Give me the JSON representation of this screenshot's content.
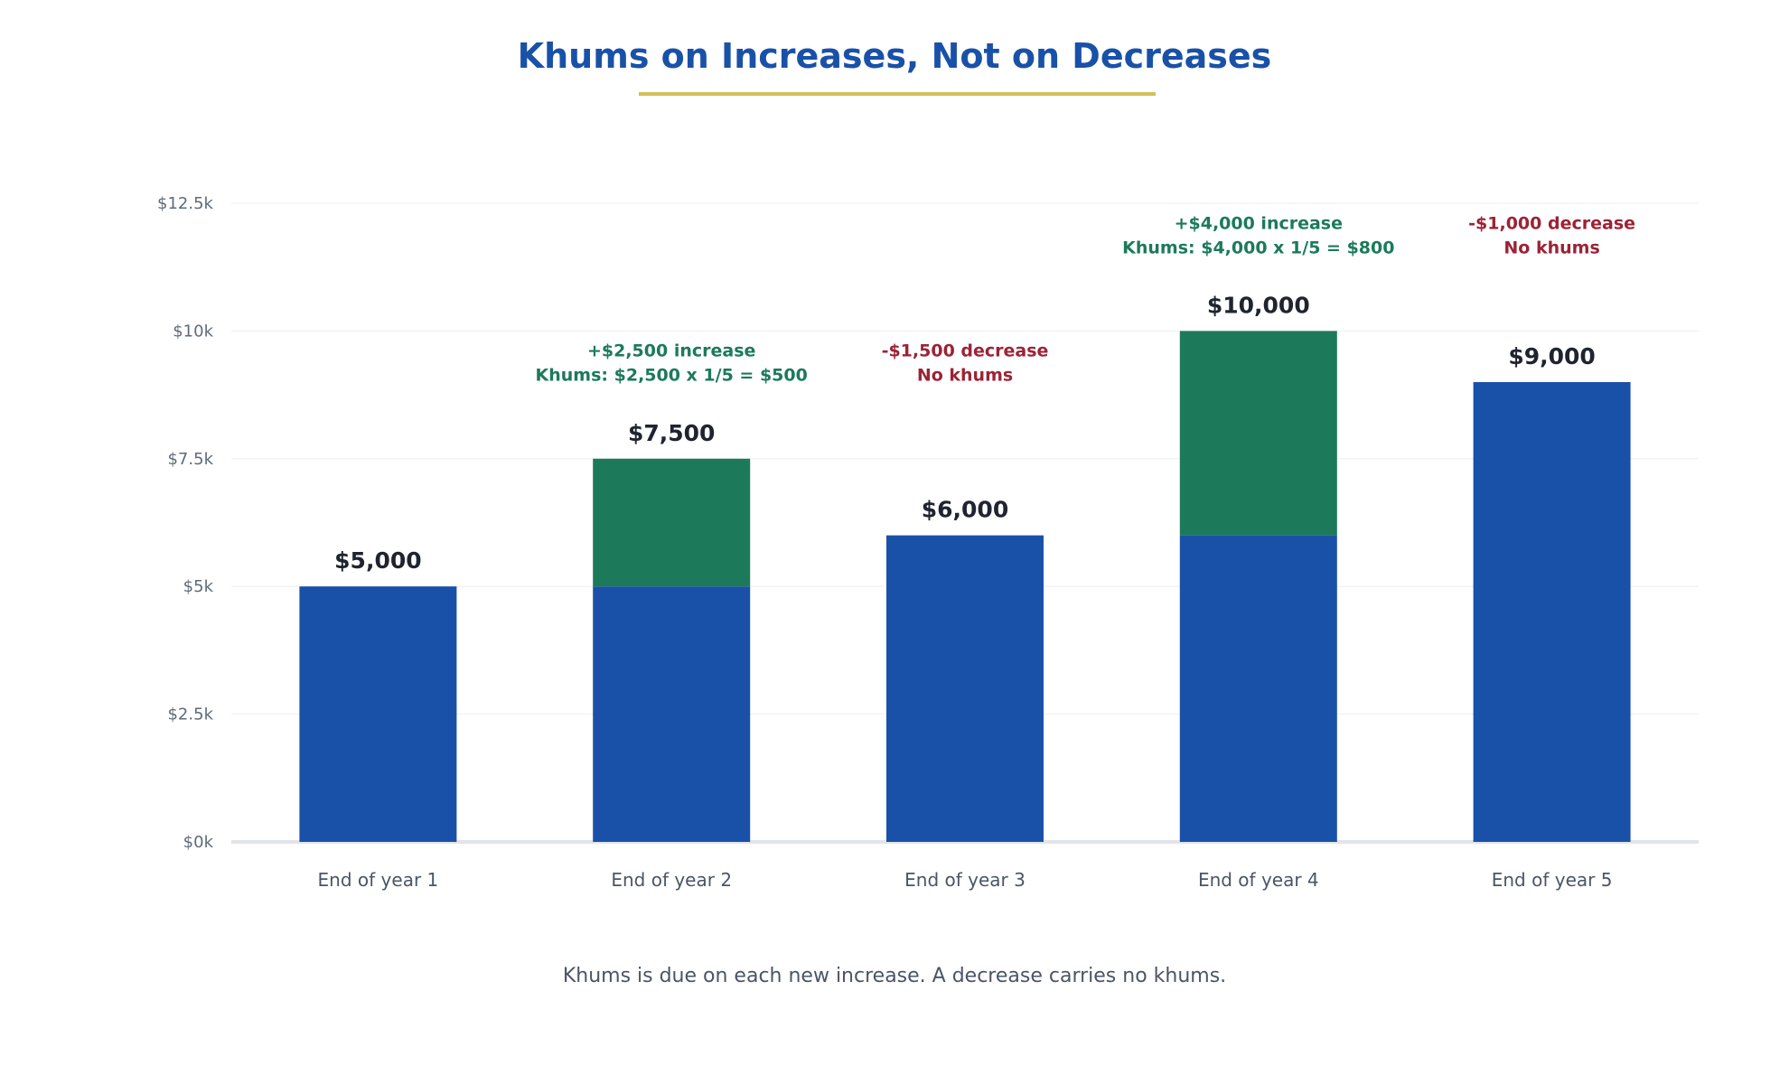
{
  "chart_data": {
    "type": "bar",
    "title": "Khums on Increases, Not on Decreases",
    "note": "Khums is due on each new increase. A decrease carries no khums.",
    "categories": [
      "End of year 1",
      "End of year 2",
      "End of year 3",
      "End of year 4",
      "End of year 5"
    ],
    "series": [
      {
        "values": [
          5000,
          5000,
          6000,
          6000,
          9000
        ],
        "color": "#1a51a8"
      },
      {
        "values": [
          0,
          2500,
          0,
          4000,
          0
        ],
        "color": "#1c7a5a"
      }
    ],
    "totals": [
      5000,
      7500,
      6000,
      10000,
      9000
    ],
    "total_labels": [
      "$5,000",
      "$7,500",
      "$6,000",
      "$10,000",
      "$9,000"
    ],
    "ylim": [
      0,
      12500
    ],
    "yticks": [
      0,
      2500,
      5000,
      7500,
      10000,
      12500
    ],
    "ytick_labels": [
      "$0k",
      "$2.5k",
      "$5k",
      "$7.5k",
      "$10k",
      "$12.5k"
    ],
    "grid": true,
    "xlabel": "",
    "ylabel": "",
    "annotations": [
      {
        "kind": "increase",
        "lines": [
          "+$2,500 increase",
          "Khums: $2,500 x 1/5 = $500"
        ],
        "anchor_x": 1.5,
        "anchor_y": 9500,
        "color": "#1c7a5a"
      },
      {
        "kind": "decrease",
        "lines": [
          "-$1,500 decrease",
          "No khums"
        ],
        "anchor_x": 2.5,
        "anchor_y": 9500,
        "color": "#9b2335"
      },
      {
        "kind": "increase",
        "lines": [
          "+$4,000 increase",
          "Khums: $4,000 x 1/5 = $800"
        ],
        "anchor_x": 3.5,
        "anchor_y": 12000,
        "color": "#1c7a5a"
      },
      {
        "kind": "decrease",
        "lines": [
          "-$1,000 decrease",
          "No khums"
        ],
        "anchor_x": 4.5,
        "anchor_y": 12000,
        "color": "#9b2335"
      }
    ],
    "colors": {
      "title": "#1a51a8",
      "title_underline": "#d4c05a",
      "base": "#1a51a8",
      "increase": "#1c7a5a",
      "decrease": "#9b2335",
      "grid": "#eceef1",
      "axis": "#e1e4e8",
      "tick_text": "#5f6b7a",
      "category_text": "#4a5566",
      "value_text": "#1f2430"
    }
  }
}
